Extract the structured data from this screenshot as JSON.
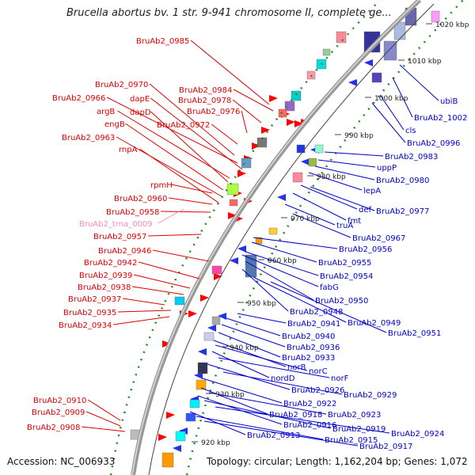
{
  "title": "Brucella abortus bv. 1 str. 9-941 chromosome II, complete ge...",
  "footer": {
    "accession": "Accession: NC_006933",
    "topology": "Topology: circular; Length: 1,162,204 bp; Genes: 1,072"
  },
  "colors": {
    "left_label": "#dd0000",
    "right_label": "#0000cc",
    "trna_label": "#ff88bb",
    "backbone": "#999999",
    "dots": "#228b22",
    "scale_line": "#444444"
  },
  "scale_ticks": [
    "1020 kbp",
    "1010 kbp",
    "1000 kbp",
    "990 kbp",
    "980 kbp",
    "970 kbp",
    "960 kbp",
    "950 kbp",
    "940 kbp",
    "930 kbp",
    "920 kbp"
  ],
  "left_labels": [
    {
      "text": "BruAb2_0985"
    },
    {
      "text": "BruAb2_0984"
    },
    {
      "text": "BruAb2_0970"
    },
    {
      "text": "BruAb2_0966"
    },
    {
      "text": "dapE"
    },
    {
      "text": "BruAb2_0978"
    },
    {
      "text": "argB"
    },
    {
      "text": "dapD"
    },
    {
      "text": "BruAb2_0976"
    },
    {
      "text": "engB"
    },
    {
      "text": "BruAb2_0972"
    },
    {
      "text": "BruAb2_0963"
    },
    {
      "text": "rnpA"
    },
    {
      "text": "rpmH"
    },
    {
      "text": "BruAb2_0960"
    },
    {
      "text": "BruAb2_0958"
    },
    {
      "text": "BruAb2_trna_0009",
      "trna": true
    },
    {
      "text": "BruAb2_0957"
    },
    {
      "text": "BruAb2_0946"
    },
    {
      "text": "BruAb2_0942"
    },
    {
      "text": "BruAb2_0939"
    },
    {
      "text": "BruAb2_0938"
    },
    {
      "text": "BruAb2_0937"
    },
    {
      "text": "BruAb2_0935"
    },
    {
      "text": "BruAb2_0934"
    },
    {
      "text": "BruAb2_0910"
    },
    {
      "text": "BruAb2_0909"
    },
    {
      "text": "BruAb2_0908"
    }
  ],
  "right_labels": [
    {
      "text": "ubiB"
    },
    {
      "text": "BruAb2_1002"
    },
    {
      "text": "cls"
    },
    {
      "text": "BruAb2_0996"
    },
    {
      "text": "BruAb2_0983"
    },
    {
      "text": "uppP"
    },
    {
      "text": "BruAb2_0980"
    },
    {
      "text": "lepA"
    },
    {
      "text": "def"
    },
    {
      "text": "BruAb2_0977"
    },
    {
      "text": "fmt"
    },
    {
      "text": "truA"
    },
    {
      "text": "BruAb2_0967"
    },
    {
      "text": "BruAb2_0956"
    },
    {
      "text": "BruAb2_0955"
    },
    {
      "text": "BruAb2_0954"
    },
    {
      "text": "fabG"
    },
    {
      "text": "BruAb2_0950"
    },
    {
      "text": "BruAb2_0948"
    },
    {
      "text": "BruAb2_0949"
    },
    {
      "text": "BruAb2_0941"
    },
    {
      "text": "BruAb2_0951"
    },
    {
      "text": "BruAb2_0940"
    },
    {
      "text": "BruAb2_0936"
    },
    {
      "text": "BruAb2_0933"
    },
    {
      "text": "norB"
    },
    {
      "text": "norC"
    },
    {
      "text": "nordD"
    },
    {
      "text": "norF"
    },
    {
      "text": "BruAb2_0926"
    },
    {
      "text": "BruAb2_0929"
    },
    {
      "text": "BruAb2_0922"
    },
    {
      "text": "BruAb2_0918"
    },
    {
      "text": "BruAb2_0923"
    },
    {
      "text": "BruAb2_0916"
    },
    {
      "text": "BruAb2_0919"
    },
    {
      "text": "BruAb2_0924"
    },
    {
      "text": "BruAb2_0913"
    },
    {
      "text": "BruAb2_0915"
    },
    {
      "text": "BruAb2_0917"
    }
  ]
}
